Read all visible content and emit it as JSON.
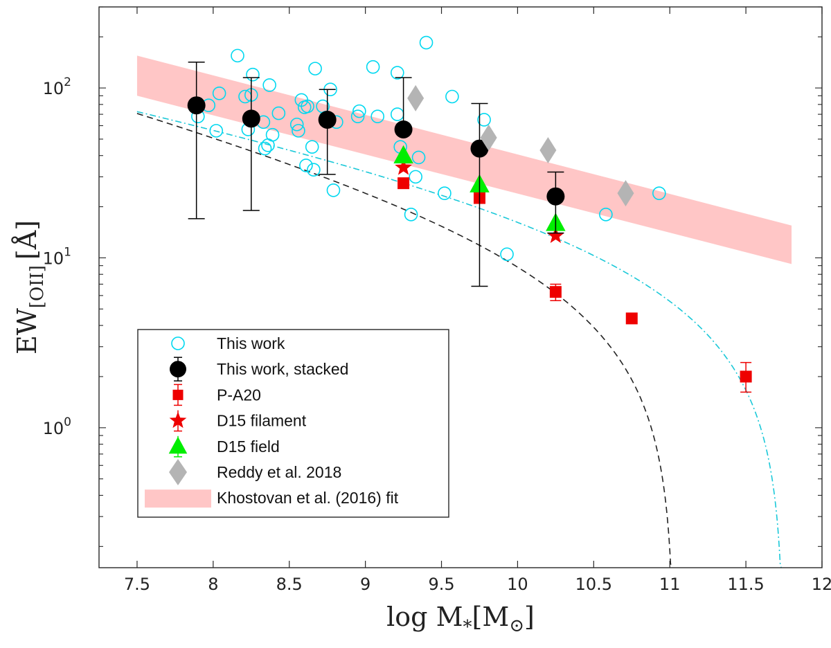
{
  "chart_data": {
    "type": "scatter",
    "xlabel": "log M",
    "xlabel_sub": "*",
    "xlabel_bracket": "[M",
    "xlabel_sun": "⊙",
    "xlabel_close": "]",
    "ylabel": "EW",
    "ylabel_sub": "[OII]",
    "ylabel_unit": "[Å]",
    "xlim": [
      7.25,
      12
    ],
    "ylim": [
      0.15,
      300
    ],
    "yscale": "log",
    "grid": false,
    "legend_position": "bottom-left",
    "x_ticks": [
      "7.5",
      "8",
      "8.5",
      "9",
      "9.5",
      "10",
      "10.5",
      "11",
      "11.5",
      "12"
    ],
    "y_ticks": [
      {
        "value": 100,
        "base": "10",
        "exp": "2"
      },
      {
        "value": 10,
        "base": "10",
        "exp": "1"
      },
      {
        "value": 1,
        "base": "10",
        "exp": "0"
      }
    ],
    "colors": {
      "this_work": "#00d8f0",
      "stacked": "#000000",
      "pa20": "#ee0000",
      "d15_filament": "#ee0000",
      "d15_field": "#00ee00",
      "reddy": "#b4b4b4",
      "band": "#ffc6c6",
      "dash_black": "#222222",
      "dashdot_cyan": "#19c8d8"
    },
    "series": [
      {
        "name": "This work",
        "marker": "open-circle",
        "points": [
          [
            7.9,
            68
          ],
          [
            7.97,
            79
          ],
          [
            8.02,
            56
          ],
          [
            8.04,
            93
          ],
          [
            8.16,
            155
          ],
          [
            8.21,
            89
          ],
          [
            8.23,
            57
          ],
          [
            8.25,
            91
          ],
          [
            8.26,
            120
          ],
          [
            8.33,
            63
          ],
          [
            8.34,
            44
          ],
          [
            8.36,
            46
          ],
          [
            8.37,
            104
          ],
          [
            8.39,
            53
          ],
          [
            8.43,
            71
          ],
          [
            8.55,
            61
          ],
          [
            8.56,
            56
          ],
          [
            8.58,
            85
          ],
          [
            8.6,
            77
          ],
          [
            8.61,
            35
          ],
          [
            8.62,
            78
          ],
          [
            8.65,
            45
          ],
          [
            8.66,
            33
          ],
          [
            8.67,
            130
          ],
          [
            8.72,
            78
          ],
          [
            8.74,
            67
          ],
          [
            8.77,
            98
          ],
          [
            8.79,
            25
          ],
          [
            8.81,
            63
          ],
          [
            8.95,
            68
          ],
          [
            8.96,
            73
          ],
          [
            9.05,
            133
          ],
          [
            9.08,
            68
          ],
          [
            9.21,
            123
          ],
          [
            9.21,
            70
          ],
          [
            9.23,
            45
          ],
          [
            9.26,
            57
          ],
          [
            9.3,
            18
          ],
          [
            9.33,
            30
          ],
          [
            9.35,
            39
          ],
          [
            9.4,
            185
          ],
          [
            9.52,
            24
          ],
          [
            9.57,
            89
          ],
          [
            9.78,
            65
          ],
          [
            9.93,
            10.5
          ],
          [
            10.58,
            18
          ],
          [
            10.93,
            24
          ]
        ]
      },
      {
        "name": "This work, stacked",
        "marker": "filled-circle-errorbar",
        "points": [
          {
            "x": 7.89,
            "y": 79,
            "lo": 17,
            "hi": 142
          },
          {
            "x": 8.25,
            "y": 66,
            "lo": 19,
            "hi": 115
          },
          {
            "x": 8.75,
            "y": 65,
            "lo": 31,
            "hi": 98
          },
          {
            "x": 9.25,
            "y": 57,
            "lo": null,
            "hi": 115
          },
          {
            "x": 9.75,
            "y": 44,
            "lo": 6.8,
            "hi": 81
          },
          {
            "x": 10.25,
            "y": 23,
            "lo": 14,
            "hi": 32
          }
        ]
      },
      {
        "name": "P-A20",
        "marker": "filled-square-errorbar",
        "points": [
          {
            "x": 9.25,
            "y": 27.5,
            "lo": null,
            "hi": null
          },
          {
            "x": 9.75,
            "y": 22.5,
            "lo": null,
            "hi": null
          },
          {
            "x": 10.25,
            "y": 6.3,
            "lo": 5.6,
            "hi": 7.0
          },
          {
            "x": 10.75,
            "y": 4.4,
            "lo": null,
            "hi": null
          },
          {
            "x": 11.5,
            "y": 2.0,
            "lo": 1.62,
            "hi": 2.42
          }
        ]
      },
      {
        "name": "D15 filament",
        "marker": "filled-star",
        "points": [
          [
            9.25,
            34
          ],
          [
            10.25,
            13.5
          ]
        ]
      },
      {
        "name": "D15 field",
        "marker": "filled-triangle",
        "points": [
          [
            9.25,
            40
          ],
          [
            9.75,
            27
          ],
          [
            10.25,
            16
          ]
        ]
      },
      {
        "name": "Reddy et al. 2018",
        "marker": "filled-diamond",
        "points": [
          [
            9.33,
            87
          ],
          [
            9.81,
            51
          ],
          [
            10.2,
            43
          ],
          [
            10.71,
            24
          ]
        ]
      }
    ],
    "band": {
      "name": "Khostovan et al. (2016) fit",
      "x": [
        7.5,
        11.8
      ],
      "y_low": [
        90,
        9.2
      ],
      "y_high": [
        155,
        15.5
      ]
    },
    "curves": [
      {
        "style": "dashed",
        "color": "dash_black",
        "a": 82,
        "x0": 7.5,
        "s": 0.245,
        "xc": 11.03
      },
      {
        "style": "dashdot",
        "color": "dashdot_cyan",
        "a": 88,
        "x0": 7.5,
        "s": 0.178,
        "xc": 11.75
      }
    ],
    "legend": [
      "This work",
      "This work, stacked",
      "P-A20",
      "D15 filament",
      "D15 field",
      "Reddy et al. 2018",
      "Khostovan et al. (2016) fit"
    ]
  }
}
